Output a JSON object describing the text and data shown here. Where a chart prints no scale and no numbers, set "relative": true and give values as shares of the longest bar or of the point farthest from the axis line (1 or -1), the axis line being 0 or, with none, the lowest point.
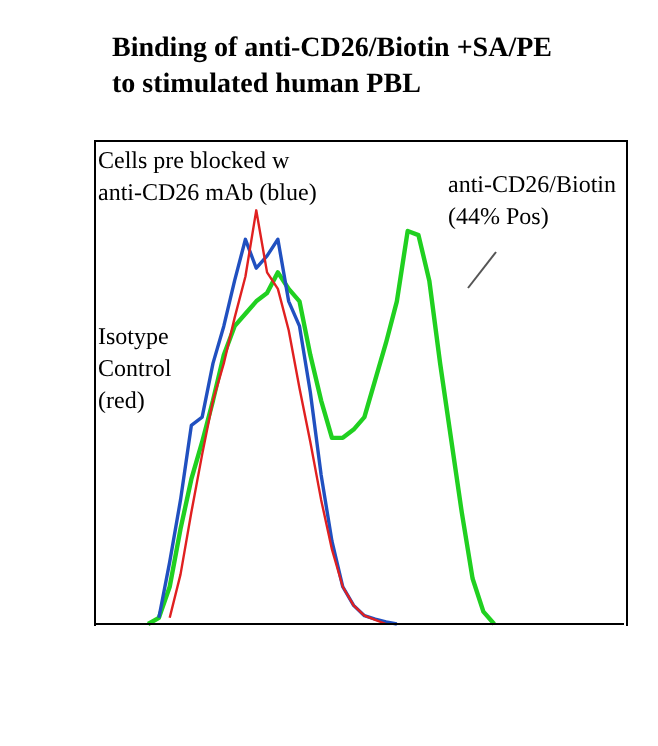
{
  "chart_data": {
    "type": "line",
    "title": "Binding of anti-CD26/Biotin +SA/PE\nto stimulated human PBL",
    "relative": true,
    "tick_labels": false,
    "marker": "none",
    "categories": [
      null,
      null,
      null,
      null,
      null,
      null,
      null,
      null,
      null,
      null,
      null,
      null,
      null,
      null,
      null,
      null,
      null,
      null,
      null,
      null,
      null,
      null,
      null,
      null,
      null,
      null,
      null,
      null,
      null,
      null,
      null,
      null,
      null,
      null,
      null,
      null,
      null,
      null,
      null,
      null,
      null,
      null,
      null,
      null,
      null,
      null,
      null,
      null,
      null,
      null
    ],
    "series": [
      {
        "color": "#e02020",
        "values": [
          null,
          null,
          null,
          null,
          null,
          null,
          null,
          0.015,
          0.12,
          0.27,
          0.41,
          0.54,
          0.63,
          0.74,
          0.84,
          1,
          0.85,
          0.81,
          0.71,
          0.57,
          0.44,
          0.3,
          0.18,
          0.09,
          0.045,
          0.02,
          0.01,
          0,
          null,
          null,
          null,
          null,
          null,
          null,
          null,
          null,
          null,
          null,
          null,
          null,
          null,
          null,
          null,
          null,
          null,
          null,
          null,
          null,
          null,
          null
        ]
      },
      {
        "color": "#2050c0",
        "values": [
          null,
          null,
          null,
          null,
          null,
          null,
          0.015,
          0.15,
          0.3,
          0.48,
          0.5,
          0.63,
          0.72,
          0.83,
          0.93,
          0.86,
          0.89,
          0.93,
          0.78,
          0.72,
          0.56,
          0.36,
          0.2,
          0.09,
          0.045,
          0.02,
          0.012,
          0.005,
          0,
          null,
          null,
          null,
          null,
          null,
          null,
          null,
          null,
          null,
          null,
          null,
          null,
          null,
          null,
          null,
          null,
          null,
          null,
          null,
          null,
          null
        ]
      },
      {
        "color": "#20d020",
        "values": [
          null,
          null,
          null,
          null,
          null,
          0,
          0.015,
          0.09,
          0.23,
          0.35,
          0.44,
          0.54,
          0.65,
          0.72,
          0.75,
          0.78,
          0.8,
          0.85,
          0.81,
          0.78,
          0.65,
          0.54,
          0.45,
          0.45,
          0.47,
          0.5,
          0.59,
          0.68,
          0.78,
          0.95,
          0.94,
          0.83,
          0.63,
          0.45,
          0.27,
          0.11,
          0.03,
          0,
          null,
          null,
          null,
          null,
          null,
          null,
          null,
          null,
          null,
          null,
          null,
          null
        ]
      }
    ],
    "annotations": [
      "Cells pre blocked w\nanti-CD26 mAb (blue)",
      "anti-CD26/Biotin\n(44% Pos)",
      "Isotype\nControl\n(red)"
    ]
  }
}
